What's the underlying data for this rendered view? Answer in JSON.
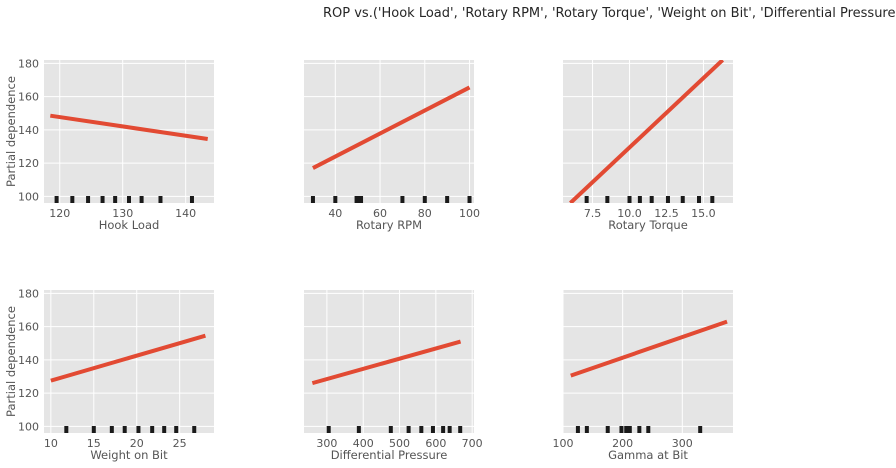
{
  "chart_data": {
    "type": "line",
    "title": "ROP vs.('Hook Load', 'Rotary RPM', 'Rotary Torque', 'Weight on Bit', 'Differential Pressure', 'Gamma at Bit')",
    "ylabel": "Partial dependence",
    "ylim": [
      96,
      182
    ],
    "yticks": [
      100,
      120,
      140,
      160,
      180
    ],
    "grid": true,
    "line_color": "#e24a33",
    "background_color": "#e5e5e5",
    "rug_color": "#1a1a1a",
    "panels": [
      {
        "xlabel": "Hook Load",
        "xlim": [
          117.5,
          144.5
        ],
        "xticks": [
          120,
          130,
          140
        ],
        "xticklabels": [
          "120",
          "130",
          "140"
        ],
        "line": {
          "x": [
            118.5,
            143.5
          ],
          "y": [
            148.5,
            134.5
          ]
        },
        "deciles": [
          119.5,
          122,
          124.5,
          126.8,
          128.8,
          131,
          133,
          136,
          141
        ]
      },
      {
        "xlabel": "Rotary RPM",
        "xlim": [
          26,
          102
        ],
        "xticks": [
          40,
          60,
          80,
          100
        ],
        "xticklabels": [
          "40",
          "60",
          "80",
          "100"
        ],
        "line": {
          "x": [
            30,
            100
          ],
          "y": [
            117,
            165.5
          ]
        },
        "deciles": [
          30,
          40,
          49.5,
          51,
          51.5,
          70,
          80,
          90,
          100
        ]
      },
      {
        "xlabel": "Rotary Torque",
        "xlim": [
          5.5,
          17
        ],
        "xticks": [
          7.5,
          10,
          12.5,
          15
        ],
        "xticklabels": [
          "7.5",
          "10.0",
          "12.5",
          "15.0"
        ],
        "line": {
          "x": [
            6,
            16.3
          ],
          "y": [
            96,
            182
          ]
        },
        "deciles": [
          7.1,
          8.5,
          10,
          10.7,
          11.5,
          12.6,
          13.6,
          14.7,
          15.6
        ]
      },
      {
        "xlabel": "Weight on Bit",
        "xlim": [
          9.2,
          29
        ],
        "xticks": [
          10,
          15,
          20,
          25
        ],
        "xticklabels": [
          "10",
          "15",
          "20",
          "25"
        ],
        "line": {
          "x": [
            10,
            28
          ],
          "y": [
            127.5,
            154.5
          ]
        },
        "deciles": [
          11.8,
          15,
          17.1,
          18.6,
          20.2,
          21.8,
          23.2,
          24.6,
          26.7
        ]
      },
      {
        "xlabel": "Differential Pressure",
        "xlim": [
          237,
          705
        ],
        "xticks": [
          300,
          400,
          500,
          600,
          700
        ],
        "xticklabels": [
          "300",
          "400",
          "500",
          "600",
          "700"
        ],
        "line": {
          "x": [
            260,
            668
          ],
          "y": [
            126,
            151
          ]
        },
        "deciles": [
          305,
          388,
          476,
          525,
          560,
          592,
          620,
          638,
          667
        ]
      },
      {
        "xlabel": "Gamma at Bit",
        "xlim": [
          100,
          385
        ],
        "xticks": [
          100,
          200,
          300
        ],
        "xticklabels": [
          "100",
          "200",
          "300"
        ],
        "line": {
          "x": [
            113,
            375
          ],
          "y": [
            130.5,
            163
          ]
        },
        "deciles": [
          125,
          140,
          175,
          198,
          206,
          212,
          228,
          243,
          330
        ]
      }
    ]
  }
}
